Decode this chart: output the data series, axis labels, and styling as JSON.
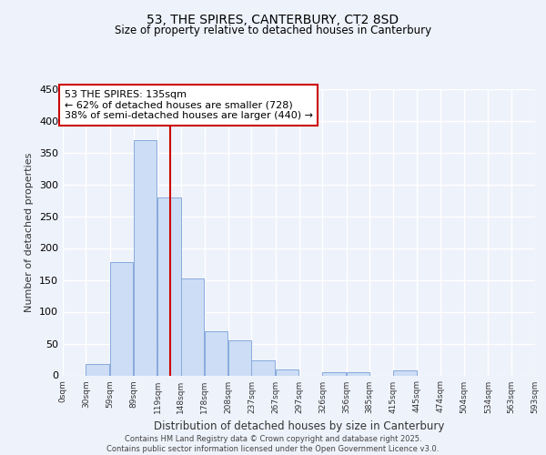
{
  "title": "53, THE SPIRES, CANTERBURY, CT2 8SD",
  "subtitle": "Size of property relative to detached houses in Canterbury",
  "xlabel": "Distribution of detached houses by size in Canterbury",
  "ylabel": "Number of detached properties",
  "bar_color": "#ccddf5",
  "bar_edge_color": "#88aadd",
  "vline_x": 135,
  "vline_color": "#cc0000",
  "ylim": [
    0,
    450
  ],
  "yticks": [
    0,
    50,
    100,
    150,
    200,
    250,
    300,
    350,
    400,
    450
  ],
  "bin_width": 29,
  "bin_starts": [
    0,
    29,
    59,
    89,
    119,
    148,
    178,
    208,
    237,
    267,
    297,
    326,
    356,
    385,
    415,
    445,
    474,
    504,
    534,
    563
  ],
  "bin_labels": [
    "0sqm",
    "30sqm",
    "59sqm",
    "89sqm",
    "119sqm",
    "148sqm",
    "178sqm",
    "208sqm",
    "237sqm",
    "267sqm",
    "297sqm",
    "326sqm",
    "356sqm",
    "385sqm",
    "415sqm",
    "445sqm",
    "474sqm",
    "504sqm",
    "534sqm",
    "563sqm",
    "593sqm"
  ],
  "bar_heights": [
    0,
    18,
    178,
    370,
    280,
    152,
    70,
    55,
    23,
    10,
    0,
    5,
    5,
    0,
    8,
    0,
    0,
    0,
    0,
    0
  ],
  "annotation_title": "53 THE SPIRES: 135sqm",
  "annotation_line1": "← 62% of detached houses are smaller (728)",
  "annotation_line2": "38% of semi-detached houses are larger (440) →",
  "footer_line1": "Contains HM Land Registry data © Crown copyright and database right 2025.",
  "footer_line2": "Contains public sector information licensed under the Open Government Licence v3.0.",
  "background_color": "#eef2fb",
  "grid_color": "#ffffff",
  "tick_label_color": "#333333"
}
